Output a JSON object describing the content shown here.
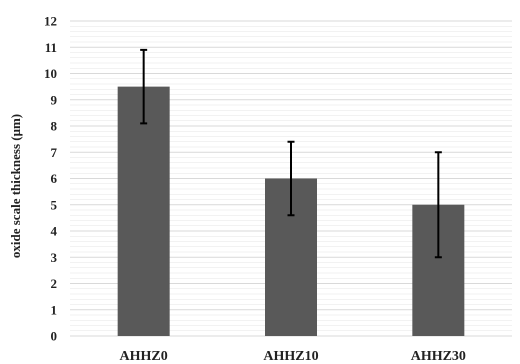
{
  "chart_data": {
    "type": "bar",
    "categories": [
      "AHHZ0",
      "AHHZ10",
      "AHHZ30"
    ],
    "values": [
      9.5,
      6.0,
      5.0
    ],
    "error_low": [
      8.1,
      4.6,
      3.0
    ],
    "error_high": [
      10.9,
      7.4,
      7.0
    ],
    "ylabel": "oxide scale thickness (μm)",
    "xlabel": "",
    "ylim": [
      0,
      12
    ],
    "yticks": [
      "0",
      "1",
      "2",
      "3",
      "4",
      "5",
      "6",
      "7",
      "8",
      "9",
      "10",
      "11",
      "12"
    ],
    "grid": true,
    "bar_color": "#595959",
    "gridline_color": "#e6e6e6",
    "error_bar_color": "#000000"
  }
}
